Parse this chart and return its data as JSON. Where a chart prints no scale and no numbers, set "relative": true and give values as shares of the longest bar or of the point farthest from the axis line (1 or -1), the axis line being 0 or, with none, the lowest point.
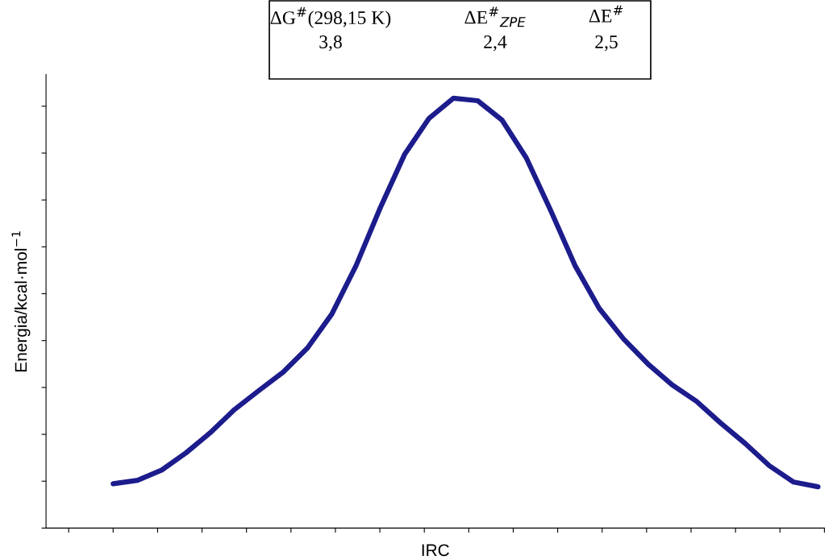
{
  "chart_data": {
    "type": "line",
    "relative": true,
    "xlabel": "IRC",
    "ylabel": "Energia/kcal·mol$^{−1}$",
    "categories": [
      null,
      null,
      null,
      null,
      null,
      null,
      null,
      null,
      null,
      null,
      null,
      null,
      null,
      null,
      null,
      null,
      null,
      null,
      null,
      null,
      null,
      null,
      null,
      null,
      null,
      null,
      null,
      null,
      null,
      null
    ],
    "series": [
      {
        "color": "#1c1c8c",
        "values": [
          0.103,
          0.111,
          0.135,
          0.175,
          0.222,
          0.276,
          0.32,
          0.363,
          0.419,
          0.498,
          0.611,
          0.746,
          0.87,
          0.953,
          1.0,
          0.994,
          0.949,
          0.861,
          0.739,
          0.611,
          0.511,
          0.44,
          0.382,
          0.333,
          0.295,
          0.244,
          0.197,
          0.145,
          0.107,
          0.096
        ]
      }
    ],
    "annotations": [
      "ΔG$^{#}$(298,15 K)",
      "ΔE$^{#}$$_{ZPE}$",
      "ΔE$^{#}$",
      "3,8",
      "2,4",
      "2,5"
    ],
    "grid": false,
    "legend": false,
    "marker": "none",
    "line_style": "solid",
    "tick_labels": false
  }
}
